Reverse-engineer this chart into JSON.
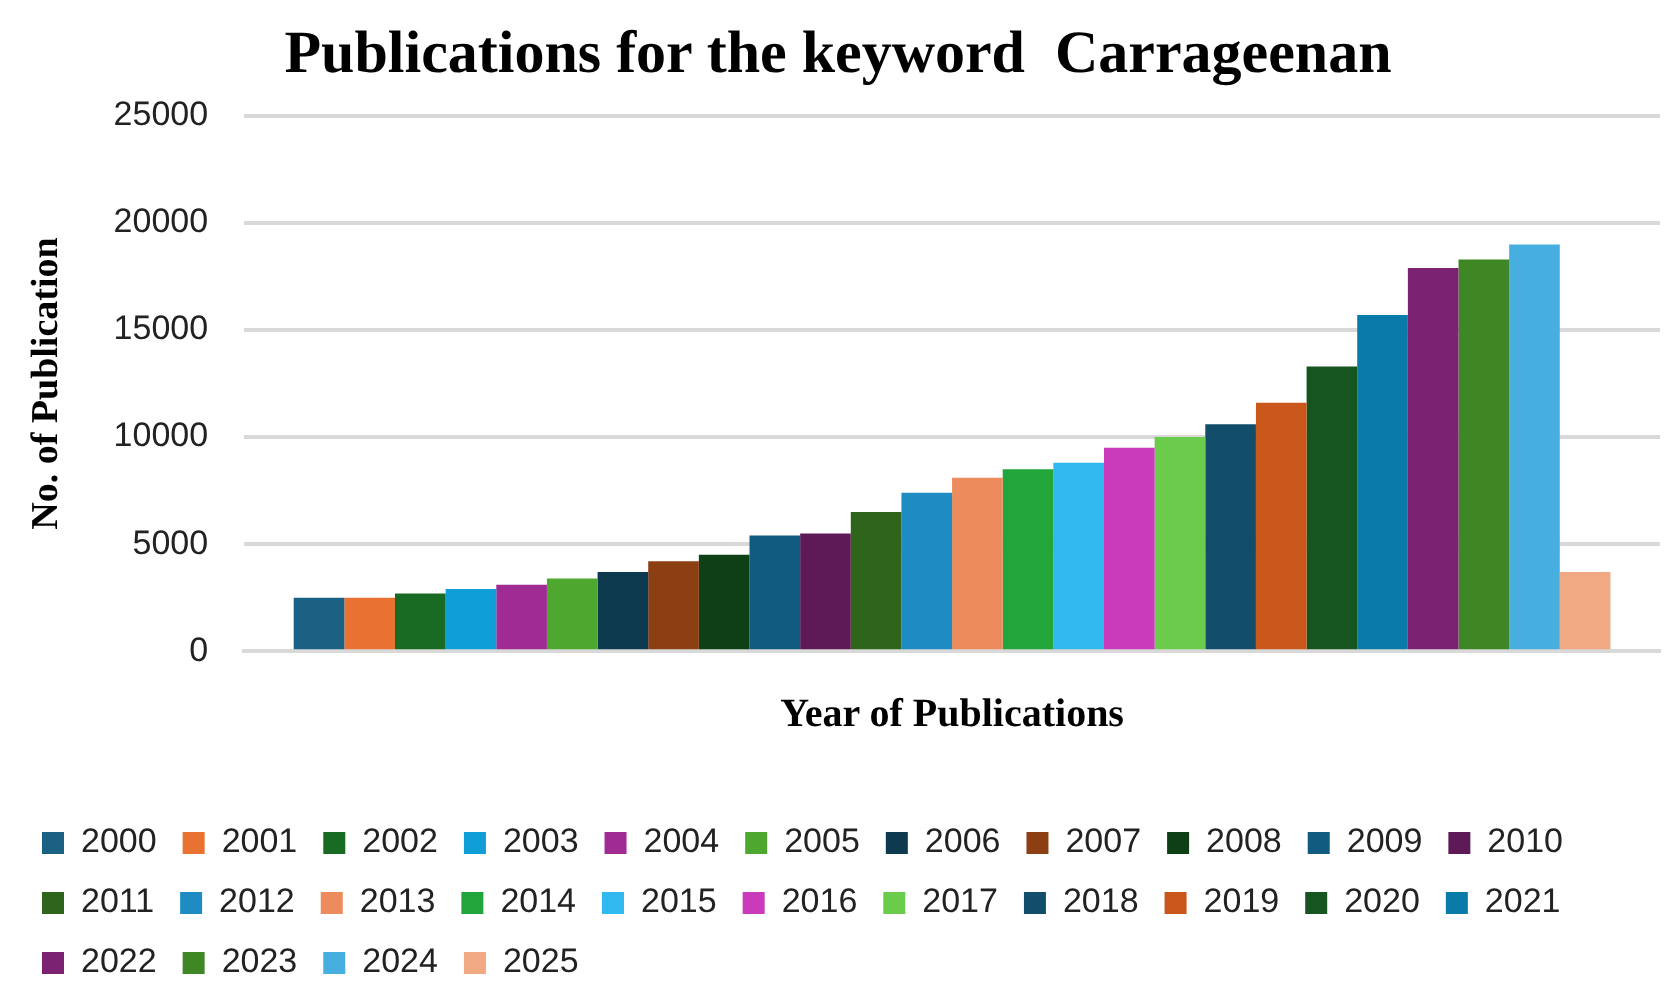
{
  "chart_data": {
    "type": "bar",
    "title": "Publications for the keyword  Carrageenan",
    "xlabel": "Year of Publications",
    "ylabel": "No. of Publication",
    "categories": [
      null
    ],
    "series": [
      {
        "name": "2000",
        "color": "#1a6184",
        "values": [
          2500
        ]
      },
      {
        "name": "2001",
        "color": "#e97132",
        "values": [
          2500
        ]
      },
      {
        "name": "2002",
        "color": "#196b24",
        "values": [
          2700
        ]
      },
      {
        "name": "2003",
        "color": "#0f9ed5",
        "values": [
          2900
        ]
      },
      {
        "name": "2004",
        "color": "#a02b93",
        "values": [
          3100
        ]
      },
      {
        "name": "2005",
        "color": "#4ea72e",
        "values": [
          3400
        ]
      },
      {
        "name": "2006",
        "color": "#0e3a4f",
        "values": [
          3700
        ]
      },
      {
        "name": "2007",
        "color": "#8c3f12",
        "values": [
          4200
        ]
      },
      {
        "name": "2008",
        "color": "#0e3f15",
        "values": [
          4500
        ]
      },
      {
        "name": "2009",
        "color": "#115b80",
        "values": [
          5400
        ]
      },
      {
        "name": "2010",
        "color": "#5e1a56",
        "values": [
          5500
        ]
      },
      {
        "name": "2011",
        "color": "#2f641b",
        "values": [
          6500
        ]
      },
      {
        "name": "2012",
        "color": "#1f8bc3",
        "values": [
          7400
        ]
      },
      {
        "name": "2013",
        "color": "#ec8b5b",
        "values": [
          8100
        ]
      },
      {
        "name": "2014",
        "color": "#22a53a",
        "values": [
          8500
        ]
      },
      {
        "name": "2015",
        "color": "#2fb9ee",
        "values": [
          8800
        ]
      },
      {
        "name": "2016",
        "color": "#c93bbb",
        "values": [
          9500
        ]
      },
      {
        "name": "2017",
        "color": "#6acc4a",
        "values": [
          10000
        ]
      },
      {
        "name": "2018",
        "color": "#124d6b",
        "values": [
          10600
        ]
      },
      {
        "name": "2019",
        "color": "#c9561a",
        "values": [
          11600
        ]
      },
      {
        "name": "2020",
        "color": "#16551f",
        "values": [
          13300
        ]
      },
      {
        "name": "2021",
        "color": "#0a7aa8",
        "values": [
          15700
        ]
      },
      {
        "name": "2022",
        "color": "#7c2272",
        "values": [
          17900
        ]
      },
      {
        "name": "2023",
        "color": "#3f8725",
        "values": [
          18300
        ]
      },
      {
        "name": "2024",
        "color": "#47aee0",
        "values": [
          19000
        ]
      },
      {
        "name": "2025",
        "color": "#f0a983",
        "values": [
          3700
        ]
      }
    ],
    "ylim": [
      0,
      25000
    ],
    "yticks": [
      0,
      5000,
      10000,
      15000,
      20000,
      25000
    ],
    "grid": "y",
    "legend": "bottom"
  }
}
